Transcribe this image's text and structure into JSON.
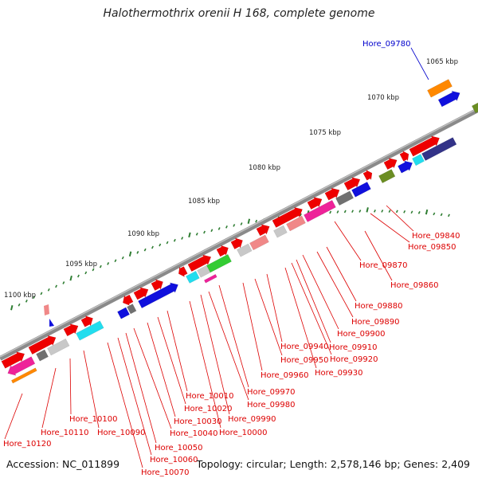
{
  "title": "Halothermothrix orenii H 168, complete genome",
  "accession": "Accession: NC_011899",
  "topology": "Topology: circular; Length: 2,578,146 bp; Genes: 2,409",
  "colors": {
    "backbone": "#909090",
    "tick": "#2e7d32",
    "label_red": "#dd0000",
    "label_blue": "#0000cc",
    "gene_red": "#ee0000",
    "gene_blue": "#1010dd",
    "gene_grey": "#c8c8c8",
    "gene_darkgrey": "#707070",
    "gene_pink": "#f08888",
    "gene_magenta": "#ee2299",
    "gene_cyan": "#22ddee",
    "gene_orange": "#ff8800",
    "gene_olive": "#6b8e23",
    "gene_navy": "#333388",
    "gene_green": "#33cc33"
  },
  "scale_labels": [
    "1065 kbp",
    "1070 kbp",
    "1075 kbp",
    "1080 kbp",
    "1085 kbp",
    "1090 kbp",
    "1095 kbp",
    "1100 kbp"
  ],
  "highlight_label": "Hore_09780",
  "gene_labels": [
    "Hore_09840",
    "Hore_09850",
    "Hore_09860",
    "Hore_09870",
    "Hore_09880",
    "Hore_09890",
    "Hore_09900",
    "Hore_09910",
    "Hore_09920",
    "Hore_09930",
    "Hore_09940",
    "Hore_09950",
    "Hore_09960",
    "Hore_09970",
    "Hore_09980",
    "Hore_09990",
    "Hore_10000",
    "Hore_10010",
    "Hore_10020",
    "Hore_10030",
    "Hore_10040",
    "Hore_10050",
    "Hore_10060",
    "Hore_10070",
    "Hore_10090",
    "Hore_10100",
    "Hore_10110",
    "Hore_10120"
  ]
}
